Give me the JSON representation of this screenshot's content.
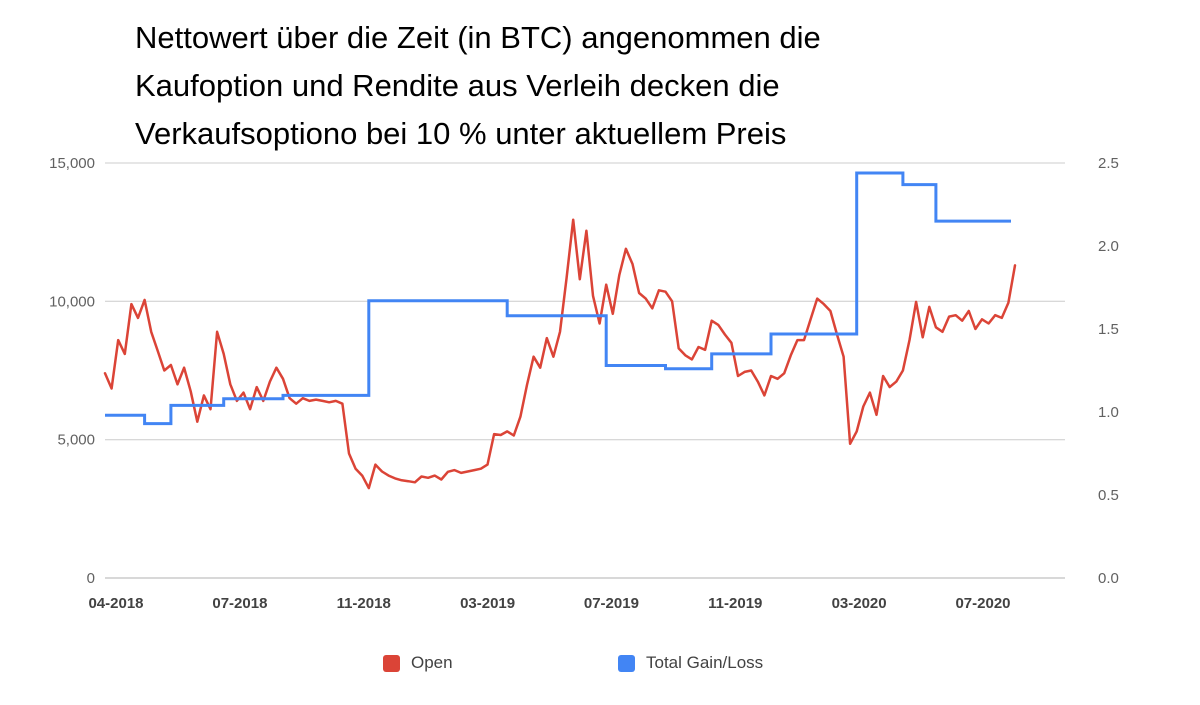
{
  "chart_data": {
    "type": "line",
    "title": "Nettowert über die Zeit (in BTC) angenommen die\nKaufoption und Rendite aus Verleih decken die\nVerkaufsoptiono bei 10 % unter aktuellem Preis",
    "grid": true,
    "legend_position": "bottom",
    "x_axis": {
      "tick_labels": [
        "04-2018",
        "07-2018",
        "11-2018",
        "03-2019",
        "07-2019",
        "11-2019",
        "03-2020",
        "07-2020"
      ]
    },
    "left_axis": {
      "max": 15000,
      "ticks": [
        {
          "value": 0,
          "label": "0"
        },
        {
          "value": 5000,
          "label": "5,000"
        },
        {
          "value": 10000,
          "label": "10,000"
        },
        {
          "value": 15000,
          "label": "15,000"
        }
      ]
    },
    "right_axis": {
      "max": 2.5,
      "ticks": [
        {
          "value": 0.0,
          "label": "0.0"
        },
        {
          "value": 0.5,
          "label": "0.5"
        },
        {
          "value": 1.0,
          "label": "1.0"
        },
        {
          "value": 1.5,
          "label": "1.5"
        },
        {
          "value": 2.0,
          "label": "2.0"
        },
        {
          "value": 2.5,
          "label": "2.5"
        }
      ]
    },
    "series": [
      {
        "name": "Open",
        "color": "#db4437",
        "axis": "left",
        "interval": "weekly",
        "start_date": "2018-03-25",
        "values": [
          7400,
          6850,
          8600,
          8100,
          9900,
          9400,
          10050,
          8900,
          8200,
          7500,
          7700,
          7000,
          7600,
          6750,
          5650,
          6600,
          6100,
          8900,
          8100,
          7000,
          6400,
          6700,
          6100,
          6900,
          6400,
          7100,
          7600,
          7200,
          6500,
          6300,
          6500,
          6400,
          6450,
          6400,
          6350,
          6400,
          6300,
          4500,
          3950,
          3700,
          3250,
          4100,
          3850,
          3700,
          3600,
          3530,
          3500,
          3460,
          3670,
          3620,
          3700,
          3560,
          3840,
          3900,
          3800,
          3850,
          3900,
          3950,
          4100,
          5200,
          5170,
          5300,
          5150,
          5830,
          6980,
          8000,
          7600,
          8670,
          8000,
          8900,
          10850,
          12950,
          10800,
          12550,
          10200,
          9200,
          10600,
          9550,
          10950,
          11900,
          11350,
          10300,
          10100,
          9750,
          10400,
          10350,
          10000,
          8300,
          8050,
          7900,
          8350,
          8250,
          9300,
          9150,
          8800,
          8500,
          7300,
          7450,
          7500,
          7100,
          6600,
          7300,
          7200,
          7400,
          8050,
          8600,
          8600,
          9350,
          10100,
          9900,
          9650,
          8800,
          8000,
          4850,
          5300,
          6200,
          6700,
          5900,
          7300,
          6900,
          7100,
          7500,
          8600,
          9980,
          8700,
          9800,
          9060,
          8900,
          9450,
          9500,
          9300,
          9650,
          9000,
          9350,
          9200,
          9500,
          9400,
          9950,
          11300
        ]
      },
      {
        "name": "Total Gain/Loss",
        "color": "#4285f4",
        "axis": "right",
        "style": "step",
        "steps": [
          {
            "week": 0,
            "value": 0.98
          },
          {
            "week": 6,
            "value": 0.93
          },
          {
            "week": 10,
            "value": 1.04
          },
          {
            "week": 18,
            "value": 1.08
          },
          {
            "week": 27,
            "value": 1.1
          },
          {
            "week": 40,
            "value": 1.67
          },
          {
            "week": 61,
            "value": 1.58
          },
          {
            "week": 76,
            "value": 1.28
          },
          {
            "week": 85,
            "value": 1.26
          },
          {
            "week": 92,
            "value": 1.35
          },
          {
            "week": 101,
            "value": 1.47
          },
          {
            "week": 114,
            "value": 2.44
          },
          {
            "week": 121,
            "value": 2.37
          },
          {
            "week": 126,
            "value": 2.15
          }
        ]
      }
    ]
  }
}
